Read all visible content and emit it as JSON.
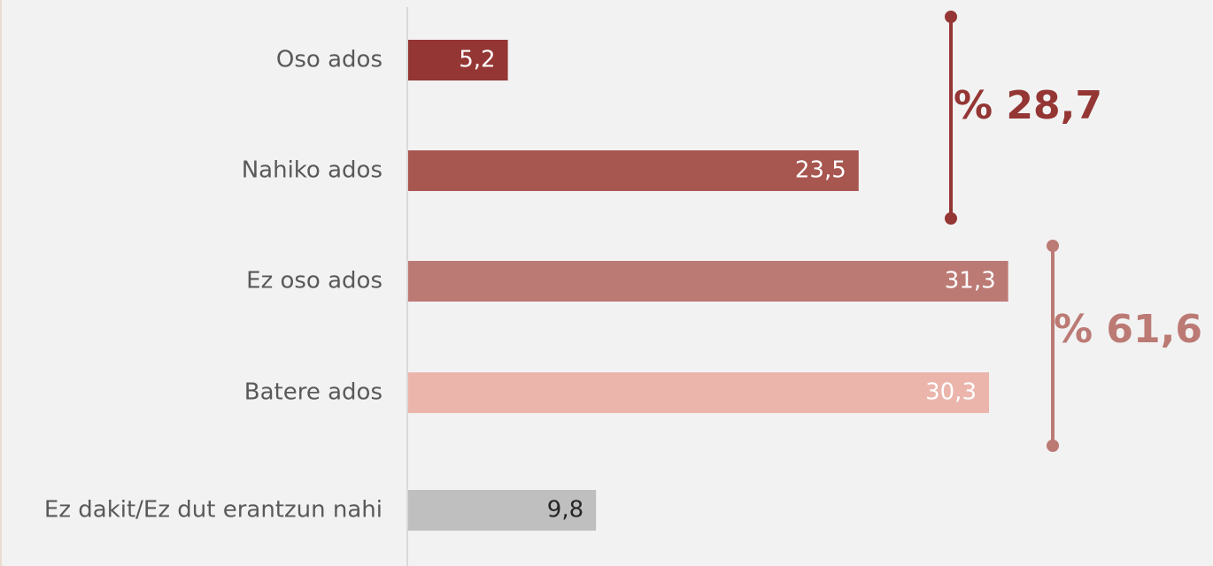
{
  "chart_data": {
    "type": "hbar",
    "categories": [
      "Oso ados",
      "Nahiko ados",
      "Ez oso ados",
      "Batere ados",
      "Ez dakit/Ez dut erantzun nahi"
    ],
    "values": [
      5.2,
      23.5,
      31.3,
      30.3,
      9.8
    ],
    "value_labels": [
      "5,2",
      "23,5",
      "31,3",
      "30,3",
      "9,8"
    ],
    "colors": [
      "#943634",
      "#a85650",
      "#bc7a75",
      "#ebb5ac",
      "#bfbfbf"
    ],
    "label_colors": [
      "#ffffff",
      "#ffffff",
      "#ffffff",
      "#ffffff",
      "#262626"
    ],
    "xlim": [
      0,
      40
    ],
    "annotations": [
      {
        "text": "% 28,7",
        "color": "#943634"
      },
      {
        "text": "% 61,6",
        "color": "#bc7a75"
      }
    ]
  }
}
